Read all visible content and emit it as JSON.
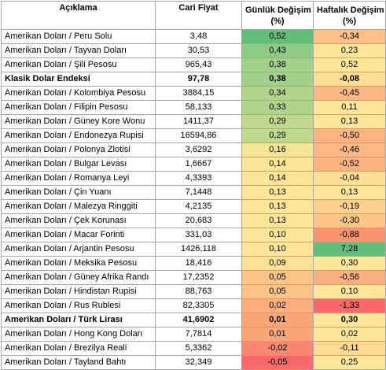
{
  "headers": {
    "description": "Açıklama",
    "price": "Cari Fiyat",
    "daily_title": "Günlük Değişim",
    "daily_unit": "(%)",
    "weekly_title": "Haftalık Değişim",
    "weekly_unit": "(%)"
  },
  "colors": {
    "strong_green": "#63be7b",
    "light_green": "#a8d08d",
    "yellow": "#ffe699",
    "light_orange": "#fbbf88",
    "orange": "#f8a878",
    "strong_red": "#f8696b"
  },
  "rows": [
    {
      "name": "Amerikan Doları / Peru Solu",
      "price": "3,48",
      "daily": "0,52",
      "weekly": "-0,34",
      "bold": false,
      "daily_color": "#63be7b",
      "weekly_color": "#fbbf88"
    },
    {
      "name": "Amerikan Doları / Tayvan Doları",
      "price": "30,53",
      "daily": "0,43",
      "weekly": "0,23",
      "bold": false,
      "daily_color": "#8ec985",
      "weekly_color": "#ffe699"
    },
    {
      "name": "Amerikan Doları / Şili Pesosu",
      "price": "965,43",
      "daily": "0,38",
      "weekly": "0,52",
      "bold": false,
      "daily_color": "#a3d08a",
      "weekly_color": "#ffe699"
    },
    {
      "name": "Klasik Dolar Endeksi",
      "price": "97,78",
      "daily": "0,38",
      "weekly": "-0,08",
      "bold": true,
      "daily_color": "#a3d08a",
      "weekly_color": "#fddc93"
    },
    {
      "name": "Amerikan Doları / Kolombiya Pesosu",
      "price": "3884,15",
      "daily": "0,34",
      "weekly": "-0,45",
      "bold": false,
      "daily_color": "#b1d48c",
      "weekly_color": "#fbb784"
    },
    {
      "name": "Amerikan Doları / Filipin Pesosu",
      "price": "58,133",
      "daily": "0,33",
      "weekly": "0,11",
      "bold": false,
      "daily_color": "#b1d48c",
      "weekly_color": "#ffe699"
    },
    {
      "name": "Amerikan Doları / Güney Kore Wonu",
      "price": "1411,37",
      "daily": "0,29",
      "weekly": "0,13",
      "bold": false,
      "daily_color": "#c1d98e",
      "weekly_color": "#ffe699"
    },
    {
      "name": "Amerikan Doları / Endonezya Rupisi",
      "price": "16594,86",
      "daily": "0,29",
      "weekly": "-0,50",
      "bold": false,
      "daily_color": "#c1d98e",
      "weekly_color": "#fbb381"
    },
    {
      "name": "Amerikan Doları / Polonya Zlotisi",
      "price": "3,6292",
      "daily": "0,16",
      "weekly": "-0,46",
      "bold": false,
      "daily_color": "#f6e595",
      "weekly_color": "#fbb784"
    },
    {
      "name": "Amerikan Doları / Bulgar Levası",
      "price": "1,6667",
      "daily": "0,14",
      "weekly": "-0,52",
      "bold": false,
      "daily_color": "#fbe697",
      "weekly_color": "#fbb381"
    },
    {
      "name": "Amerikan Doları / Romanya Leyi",
      "price": "4,3393",
      "daily": "0,14",
      "weekly": "-0,04",
      "bold": false,
      "daily_color": "#fbe697",
      "weekly_color": "#fedf95"
    },
    {
      "name": "Amerikan Doları / Çin Yuanı",
      "price": "7,1448",
      "daily": "0,13",
      "weekly": "0,13",
      "bold": false,
      "daily_color": "#ffe699",
      "weekly_color": "#ffe699"
    },
    {
      "name": "Amerikan Doları / Malezya Ringgiti",
      "price": "4,2135",
      "daily": "0,13",
      "weekly": "-0,19",
      "bold": false,
      "daily_color": "#ffe699",
      "weekly_color": "#fcd18e"
    },
    {
      "name": "Amerikan Doları / Çek Korunası",
      "price": "20,683",
      "daily": "0,13",
      "weekly": "-0,30",
      "bold": false,
      "daily_color": "#ffe699",
      "weekly_color": "#fcc689"
    },
    {
      "name": "Amerikan Doları / Macar Forinti",
      "price": "331,03",
      "daily": "0,10",
      "weekly": "-0,88",
      "bold": false,
      "daily_color": "#ffe699",
      "weekly_color": "#f99370"
    },
    {
      "name": "Amerikan Doları / Arjantin Pesosu",
      "price": "1426,118",
      "daily": "0,10",
      "weekly": "7,28",
      "bold": false,
      "daily_color": "#ffe699",
      "weekly_color": "#63be7b"
    },
    {
      "name": "Amerikan Doları / Meksika Pesosu",
      "price": "18,416",
      "daily": "0,09",
      "weekly": "0,30",
      "bold": false,
      "daily_color": "#fee196",
      "weekly_color": "#ffe699"
    },
    {
      "name": "Amerikan Doları / Güney Afrika Randı",
      "price": "17,2352",
      "daily": "0,05",
      "weekly": "-0,56",
      "bold": false,
      "daily_color": "#fcc489",
      "weekly_color": "#faaf7f"
    },
    {
      "name": "Amerikan Doları / Hindistan Rupisi",
      "price": "88,763",
      "daily": "0,05",
      "weekly": "0,10",
      "bold": false,
      "daily_color": "#fcc489",
      "weekly_color": "#ffe699"
    },
    {
      "name": "Amerikan Doları / Rus Rublesi",
      "price": "82,3305",
      "daily": "0,02",
      "weekly": "-1,33",
      "bold": false,
      "daily_color": "#fbad7e",
      "weekly_color": "#f8696b"
    },
    {
      "name": "Amerikan Doları / Türk Lirası",
      "price": "41,6902",
      "daily": "0,01",
      "weekly": "0,30",
      "bold": true,
      "daily_color": "#faa679",
      "weekly_color": "#ffe699"
    },
    {
      "name": "Amerikan Doları / Hong Kong Doları",
      "price": "7,7814",
      "daily": "0,01",
      "weekly": "0,02",
      "bold": false,
      "daily_color": "#faa679",
      "weekly_color": "#ffe699"
    },
    {
      "name": "Amerikan Doları / Brezilya Reali",
      "price": "5,3362",
      "daily": "-0,02",
      "weekly": "-0,11",
      "bold": false,
      "daily_color": "#f98871",
      "weekly_color": "#fdd992"
    },
    {
      "name": "Amerikan Doları / Tayland Bahtı",
      "price": "32,349",
      "daily": "-0,05",
      "weekly": "0,25",
      "bold": false,
      "daily_color": "#f8696b",
      "weekly_color": "#ffe699"
    }
  ]
}
